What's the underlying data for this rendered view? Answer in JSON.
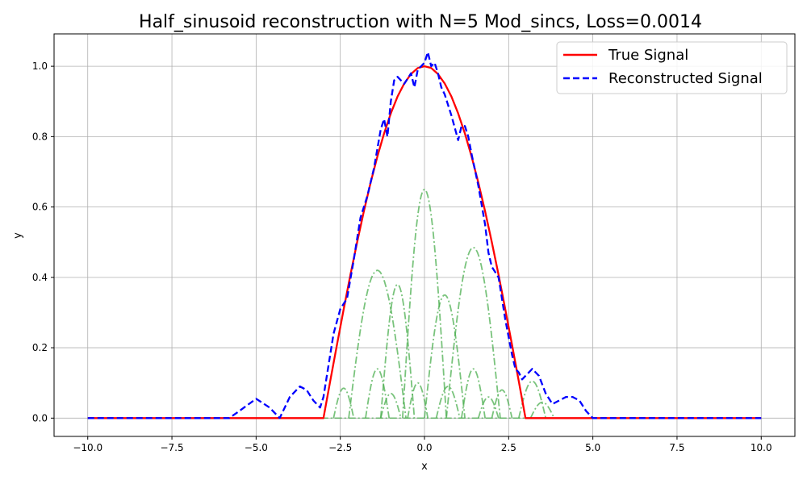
{
  "chart_data": {
    "type": "line",
    "title": "Half_sinusoid reconstruction with N=5 Mod_sincs, Loss=0.0014",
    "xlabel": "x",
    "ylabel": "y",
    "xlim": [
      -11.0,
      11.0
    ],
    "ylim": [
      -0.052,
      1.092
    ],
    "xticks": [
      -10.0,
      -7.5,
      -5.0,
      -2.5,
      0.0,
      2.5,
      5.0,
      7.5,
      10.0
    ],
    "xtick_labels": [
      "−10.0",
      "−7.5",
      "−5.0",
      "−2.5",
      "0.0",
      "2.5",
      "5.0",
      "7.5",
      "10.0"
    ],
    "yticks": [
      0.0,
      0.2,
      0.4,
      0.6,
      0.8,
      1.0
    ],
    "ytick_labels": [
      "0.0",
      "0.2",
      "0.4",
      "0.6",
      "0.8",
      "1.0"
    ],
    "grid": true,
    "legend_position": "top-right",
    "series": [
      {
        "name": "True Signal",
        "color": "#ff0000",
        "style": "solid",
        "x": [
          -10.0,
          -3.0,
          -2.8,
          -2.6,
          -2.4,
          -2.2,
          -2.0,
          -1.8,
          -1.6,
          -1.4,
          -1.2,
          -1.0,
          -0.8,
          -0.6,
          -0.4,
          -0.2,
          0.0,
          0.2,
          0.4,
          0.6,
          0.8,
          1.0,
          1.2,
          1.4,
          1.6,
          1.8,
          2.0,
          2.2,
          2.4,
          2.6,
          2.8,
          3.0,
          10.0
        ],
        "y": [
          0.0,
          0.0,
          0.105,
          0.208,
          0.309,
          0.407,
          0.5,
          0.588,
          0.669,
          0.743,
          0.809,
          0.866,
          0.914,
          0.951,
          0.978,
          0.995,
          1.0,
          0.995,
          0.978,
          0.951,
          0.914,
          0.866,
          0.809,
          0.743,
          0.669,
          0.588,
          0.5,
          0.407,
          0.309,
          0.208,
          0.105,
          0.0,
          0.0
        ]
      },
      {
        "name": "Reconstructed Signal",
        "color": "#0000ff",
        "style": "dashed",
        "x": [
          -10.0,
          -6.0,
          -5.8,
          -5.5,
          -5.0,
          -4.6,
          -4.3,
          -4.0,
          -3.7,
          -3.5,
          -3.3,
          -3.1,
          -3.0,
          -2.9,
          -2.7,
          -2.5,
          -2.3,
          -2.1,
          -1.9,
          -1.7,
          -1.5,
          -1.3,
          -1.2,
          -1.1,
          -1.0,
          -0.9,
          -0.8,
          -0.6,
          -0.4,
          -0.3,
          -0.2,
          -0.1,
          0.0,
          0.1,
          0.2,
          0.3,
          0.4,
          0.5,
          0.6,
          0.8,
          1.0,
          1.1,
          1.2,
          1.3,
          1.4,
          1.6,
          1.8,
          1.9,
          2.0,
          2.2,
          2.4,
          2.6,
          2.7,
          2.8,
          2.9,
          3.0,
          3.2,
          3.4,
          3.6,
          3.8,
          4.0,
          4.2,
          4.4,
          4.6,
          4.8,
          5.0,
          10.0
        ],
        "y": [
          0.0,
          0.0,
          0.0,
          0.02,
          0.055,
          0.03,
          0.0,
          0.06,
          0.09,
          0.08,
          0.05,
          0.03,
          0.06,
          0.12,
          0.24,
          0.31,
          0.34,
          0.45,
          0.57,
          0.63,
          0.71,
          0.82,
          0.85,
          0.8,
          0.9,
          0.96,
          0.97,
          0.95,
          0.98,
          0.94,
          0.99,
          1.0,
          1.01,
          1.04,
          1.0,
          1.01,
          0.98,
          0.94,
          0.92,
          0.86,
          0.79,
          0.83,
          0.83,
          0.8,
          0.75,
          0.66,
          0.55,
          0.47,
          0.43,
          0.4,
          0.28,
          0.18,
          0.14,
          0.13,
          0.11,
          0.12,
          0.14,
          0.12,
          0.07,
          0.04,
          0.05,
          0.06,
          0.06,
          0.05,
          0.02,
          0.0,
          0.0
        ]
      }
    ],
    "components": {
      "color": "#4caf50",
      "style": "dashdot",
      "curves": [
        {
          "center": 0.0,
          "halfwidth": 0.65,
          "amplitude": 0.65
        },
        {
          "center": -1.4,
          "halfwidth": 0.85,
          "amplitude": 0.42
        },
        {
          "center": 1.45,
          "halfwidth": 0.8,
          "amplitude": 0.485
        },
        {
          "center": -0.8,
          "halfwidth": 0.5,
          "amplitude": 0.38
        },
        {
          "center": 0.6,
          "halfwidth": 0.6,
          "amplitude": 0.35
        },
        {
          "center": -1.4,
          "halfwidth": 0.35,
          "amplitude": 0.14
        },
        {
          "center": 1.45,
          "halfwidth": 0.35,
          "amplitude": 0.14
        },
        {
          "center": -2.4,
          "halfwidth": 0.3,
          "amplitude": 0.085
        },
        {
          "center": 2.3,
          "halfwidth": 0.3,
          "amplitude": 0.08
        },
        {
          "center": 3.2,
          "halfwidth": 0.4,
          "amplitude": 0.105
        },
        {
          "center": -0.2,
          "halfwidth": 0.3,
          "amplitude": 0.1
        },
        {
          "center": 0.7,
          "halfwidth": 0.35,
          "amplitude": 0.09
        },
        {
          "center": -1.0,
          "halfwidth": 0.3,
          "amplitude": 0.07
        },
        {
          "center": 1.9,
          "halfwidth": 0.3,
          "amplitude": 0.06
        },
        {
          "center": 3.5,
          "halfwidth": 0.35,
          "amplitude": 0.045
        }
      ]
    }
  }
}
